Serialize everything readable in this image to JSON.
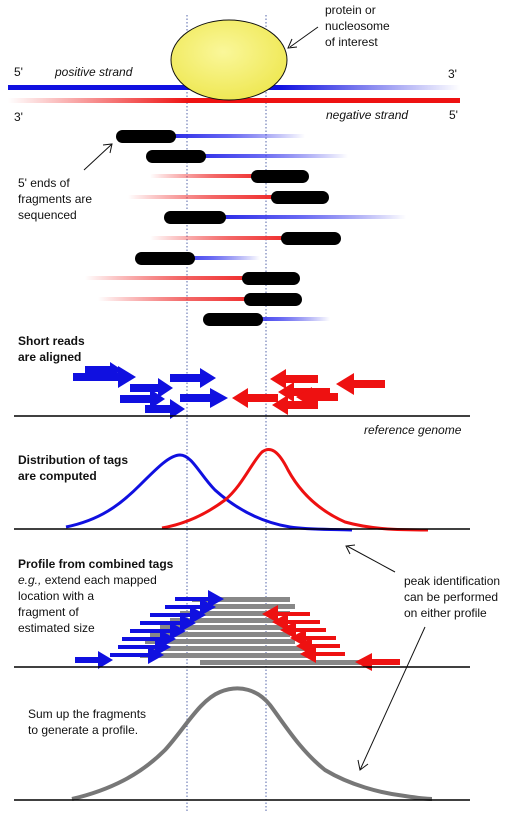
{
  "colors": {
    "positive": "#1010e0",
    "negative": "#ee1111",
    "protein": "#f4f06a",
    "read": "#000000",
    "profile": "#777777",
    "gray_fragment": "#888888",
    "baseline": "#000000"
  },
  "labels": {
    "protein": [
      "protein or",
      "nucleosome",
      "of interest"
    ],
    "five_prime_left": "5'",
    "three_prime_right": "3'",
    "three_prime_left": "3'",
    "five_prime_right": "5'",
    "positive_strand": "positive strand",
    "negative_strand": "negative strand",
    "ends_sequenced": [
      "5' ends of",
      "fragments are",
      "sequenced"
    ],
    "short_reads": [
      "Short reads",
      "are aligned"
    ],
    "reference_genome": "reference genome",
    "distribution": [
      "Distribution of tags",
      "are computed"
    ],
    "profile_title": "Profile from combined tags",
    "profile_eg": "e.g.,",
    "profile_desc": [
      " extend each mapped",
      "location with a",
      "fragment of",
      "estimated size"
    ],
    "peak_id": [
      "peak identification",
      "can be performed",
      "on either profile"
    ],
    "sum_up": [
      "Sum up the fragments",
      "to generate a profile."
    ]
  }
}
